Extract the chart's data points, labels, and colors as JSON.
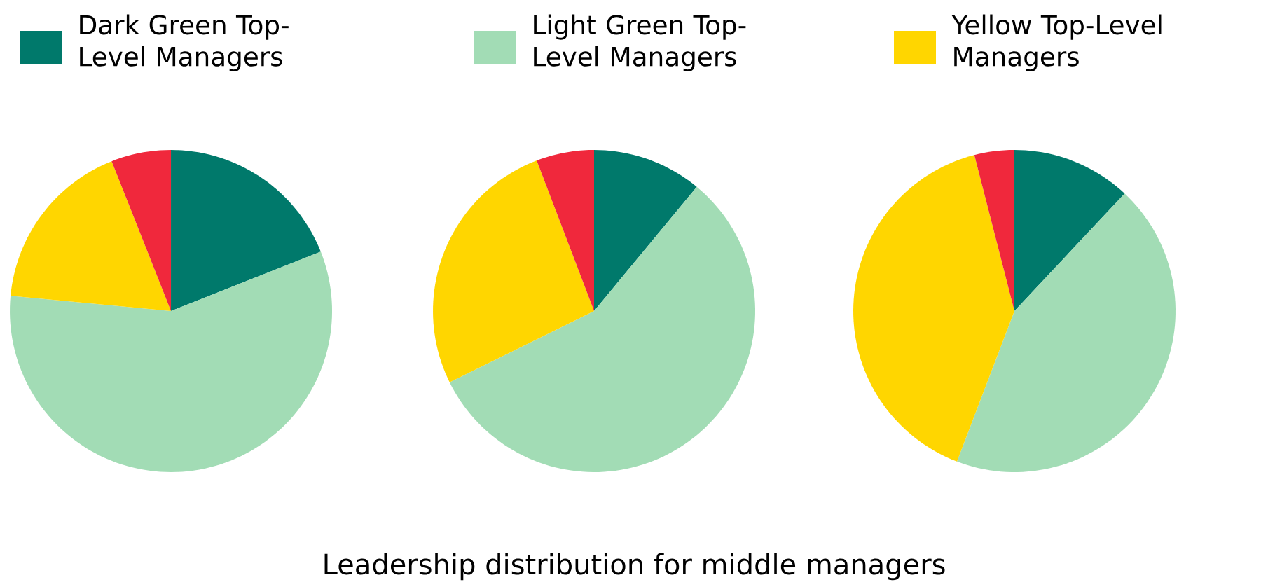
{
  "chart_data": [
    {
      "type": "pie",
      "categories": [
        "Dark Green Top-Level Managers",
        "Light Green Top-Level Managers",
        "Yellow Top-Level Managers",
        null
      ],
      "values": [
        19,
        57.5,
        17.5,
        6
      ],
      "colors": [
        "#00796b",
        "#a2dcb5",
        "#ffd600",
        "#f0283c"
      ],
      "legend": "top"
    },
    {
      "type": "pie",
      "title": "Leadership distribution for middle managers",
      "categories": [
        null,
        null,
        null,
        null
      ],
      "values": [
        11,
        56.7,
        26.5,
        5.8
      ],
      "colors": [
        "#00796b",
        "#a2dcb5",
        "#ffd600",
        "#f0283c"
      ]
    },
    {
      "type": "pie",
      "categories": [
        null,
        null,
        null,
        null
      ],
      "values": [
        12,
        43.8,
        40.2,
        4
      ],
      "colors": [
        "#00796b",
        "#a2dcb5",
        "#ffd600",
        "#f0283c"
      ]
    }
  ]
}
